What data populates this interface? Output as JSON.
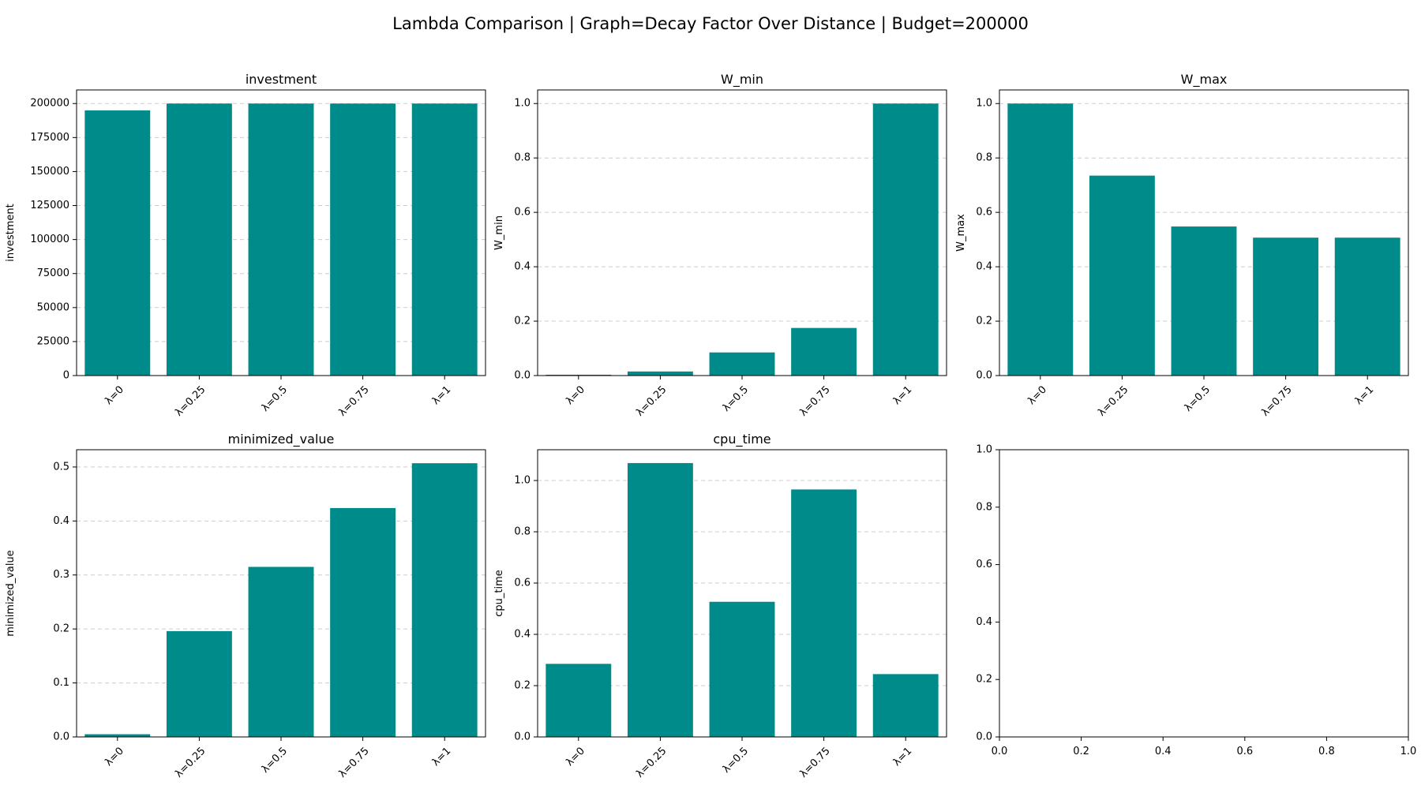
{
  "figure": {
    "suptitle": "Lambda Comparison | Graph=Decay Factor Over Distance | Budget=200000"
  },
  "style": {
    "bar_color": "#008B8B",
    "grid_color": "#cccccc"
  },
  "chart_data": [
    {
      "type": "bar",
      "title": "investment",
      "xlabel": "",
      "ylabel": "investment",
      "categories": [
        "λ=0",
        "λ=0.25",
        "λ=0.5",
        "λ=0.75",
        "λ=1"
      ],
      "values": [
        195000,
        200000,
        200000,
        200000,
        200000
      ],
      "ylim": [
        0,
        210000
      ],
      "yticks": [
        0,
        25000,
        50000,
        75000,
        100000,
        125000,
        150000,
        175000,
        200000
      ],
      "grid": "y"
    },
    {
      "type": "bar",
      "title": "W_min",
      "xlabel": "",
      "ylabel": "W_min",
      "categories": [
        "λ=0",
        "λ=0.25",
        "λ=0.5",
        "λ=0.75",
        "λ=1"
      ],
      "values": [
        0.003,
        0.015,
        0.085,
        0.175,
        1.0
      ],
      "ylim": [
        0,
        1.05
      ],
      "yticks": [
        0.0,
        0.2,
        0.4,
        0.6,
        0.8,
        1.0
      ],
      "grid": "y"
    },
    {
      "type": "bar",
      "title": "W_max",
      "xlabel": "",
      "ylabel": "W_max",
      "categories": [
        "λ=0",
        "λ=0.25",
        "λ=0.5",
        "λ=0.75",
        "λ=1"
      ],
      "values": [
        1.0,
        0.735,
        0.548,
        0.507,
        0.507
      ],
      "ylim": [
        0,
        1.05
      ],
      "yticks": [
        0.0,
        0.2,
        0.4,
        0.6,
        0.8,
        1.0
      ],
      "grid": "y"
    },
    {
      "type": "bar",
      "title": "minimized_value",
      "xlabel": "",
      "ylabel": "minimized_value",
      "categories": [
        "λ=0",
        "λ=0.25",
        "λ=0.5",
        "λ=0.75",
        "λ=1"
      ],
      "values": [
        0.005,
        0.196,
        0.315,
        0.424,
        0.507
      ],
      "ylim": [
        0,
        0.532
      ],
      "yticks": [
        0.0,
        0.1,
        0.2,
        0.3,
        0.4,
        0.5
      ],
      "grid": "y"
    },
    {
      "type": "bar",
      "title": "cpu_time",
      "xlabel": "",
      "ylabel": "cpu_time",
      "categories": [
        "λ=0",
        "λ=0.25",
        "λ=0.5",
        "λ=0.75",
        "λ=1"
      ],
      "values": [
        0.285,
        1.068,
        0.527,
        0.965,
        0.245
      ],
      "ylim": [
        0,
        1.12
      ],
      "yticks": [
        0.0,
        0.2,
        0.4,
        0.6,
        0.8,
        1.0
      ],
      "grid": "y"
    },
    {
      "type": "empty",
      "title": "",
      "xlabel": "",
      "ylabel": "",
      "categories": [],
      "values": [],
      "xlim": [
        0,
        1
      ],
      "ylim": [
        0,
        1
      ],
      "xticks": [
        0.0,
        0.2,
        0.4,
        0.6,
        0.8,
        1.0
      ],
      "yticks": [
        0.0,
        0.2,
        0.4,
        0.6,
        0.8,
        1.0
      ],
      "grid": "none"
    }
  ]
}
